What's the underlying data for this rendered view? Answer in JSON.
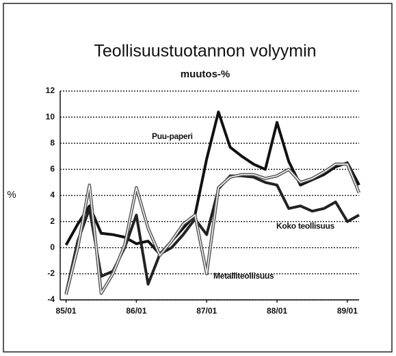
{
  "chart_data": {
    "type": "line",
    "title": "Teollisuustuotannon volyymin",
    "subtitle": "muutos-%",
    "y_label": "%",
    "x": [
      0,
      2,
      4,
      6,
      8,
      10,
      12,
      14,
      16,
      18,
      20,
      22,
      24,
      26,
      28,
      30,
      32,
      34,
      36,
      38,
      40,
      42,
      44,
      46,
      48,
      50
    ],
    "xlim": [
      -1,
      50
    ],
    "xticks": [
      {
        "value": 0,
        "label": "85/01"
      },
      {
        "value": 12,
        "label": "86/01"
      },
      {
        "value": 24,
        "label": "87/01"
      },
      {
        "value": 36,
        "label": "88/01"
      },
      {
        "value": 48,
        "label": "89/01"
      }
    ],
    "ylim": [
      -4,
      12
    ],
    "yticks": [
      -4,
      -2,
      0,
      2,
      4,
      6,
      8,
      10,
      12
    ],
    "grid": true,
    "series": [
      {
        "name": "Puu-paperi",
        "color": "#111111",
        "style": "solid",
        "values": [
          0.2,
          1.8,
          3.2,
          1.1,
          1.0,
          0.8,
          0.3,
          0.5,
          -0.5,
          0.5,
          1.5,
          2.5,
          6.8,
          10.4,
          7.7,
          7.0,
          6.4,
          6.0,
          9.6,
          6.6,
          4.8,
          5.2,
          5.6,
          6.2,
          6.5,
          4.8
        ]
      },
      {
        "name": "Koko teollisuus",
        "color": "#222222",
        "style": "solid",
        "values": [
          -3.5,
          0.5,
          3.0,
          -2.2,
          -1.8,
          0.0,
          2.5,
          -2.8,
          -0.5,
          0.0,
          1.0,
          2.2,
          1.0,
          4.5,
          5.5,
          5.5,
          5.4,
          5.0,
          4.8,
          3.0,
          3.2,
          2.8,
          3.0,
          3.5,
          2.0,
          2.5
        ]
      },
      {
        "name": "Metalliteollisuus",
        "color": "#555555",
        "style": "double",
        "values": [
          -3.6,
          0.0,
          4.8,
          -3.5,
          -2.0,
          0.2,
          4.6,
          1.5,
          -0.6,
          0.5,
          1.8,
          2.5,
          -2.0,
          4.6,
          5.4,
          5.6,
          5.6,
          5.3,
          5.5,
          6.0,
          5.0,
          5.3,
          5.8,
          6.4,
          6.4,
          4.2
        ]
      }
    ]
  }
}
